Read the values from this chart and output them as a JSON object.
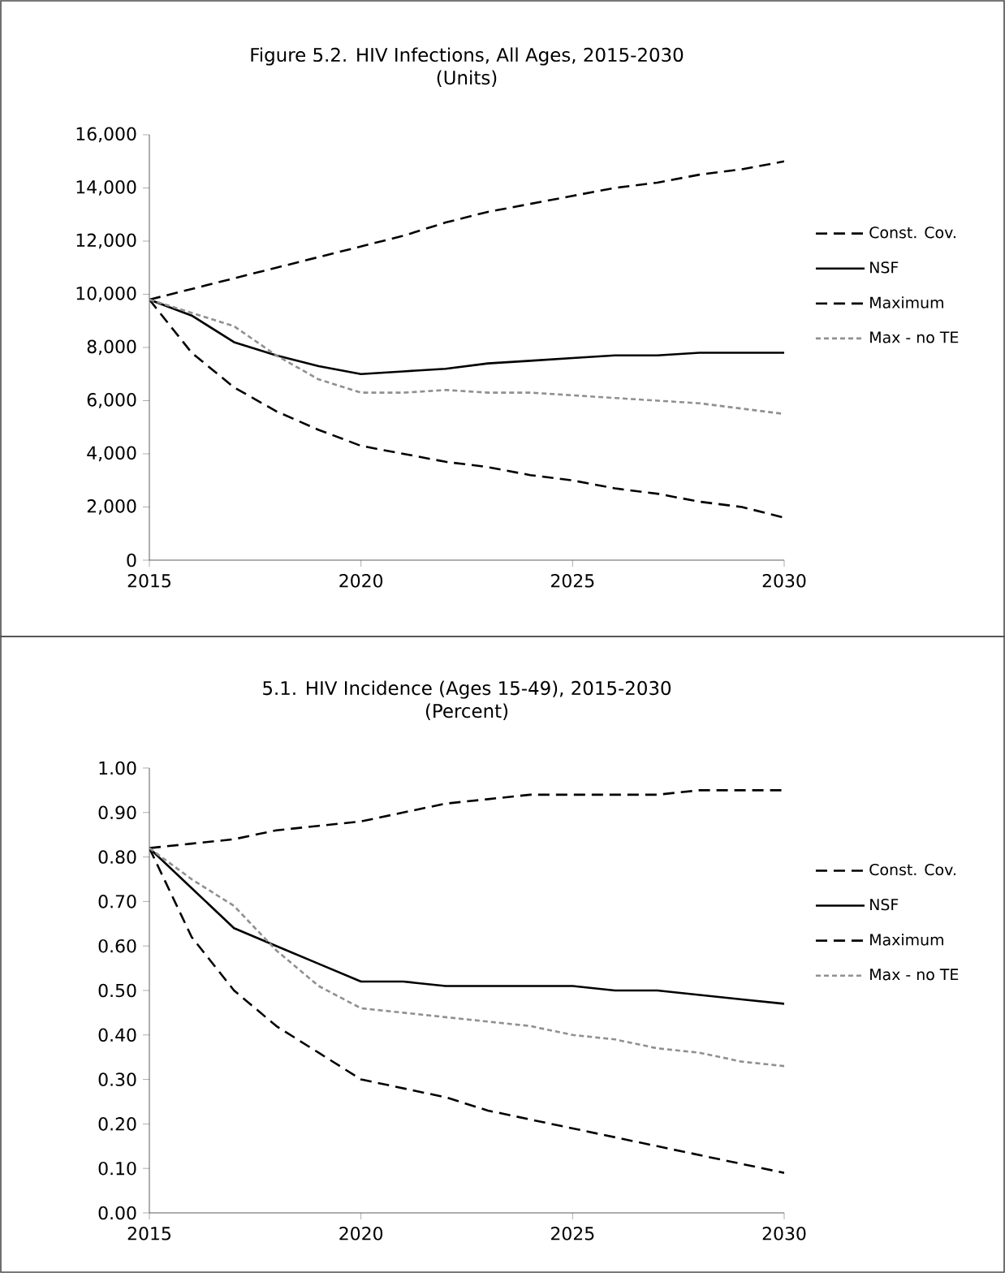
{
  "chart_data": [
    {
      "type": "line",
      "title": "Figure 5.2. HIV Infections, All Ages, 2015-2030",
      "subtitle": "(Units)",
      "x": [
        2015,
        2016,
        2017,
        2018,
        2019,
        2020,
        2021,
        2022,
        2023,
        2024,
        2025,
        2026,
        2027,
        2028,
        2029,
        2030
      ],
      "series": [
        {
          "name": "Const. Cov.",
          "color": "#000000",
          "line_style": "dashed",
          "values": [
            9800,
            10200,
            10600,
            11000,
            11400,
            11800,
            12200,
            12700,
            13100,
            13400,
            13700,
            14000,
            14200,
            14500,
            14700,
            15000
          ]
        },
        {
          "name": "NSF",
          "color": "#000000",
          "line_style": "solid",
          "values": [
            9800,
            9200,
            8200,
            7700,
            7300,
            7000,
            7100,
            7200,
            7400,
            7500,
            7600,
            7700,
            7700,
            7800,
            7800,
            7800
          ]
        },
        {
          "name": "Maximum",
          "color": "#000000",
          "line_style": "dashed",
          "values": [
            9800,
            7800,
            6500,
            5600,
            4900,
            4300,
            4000,
            3700,
            3500,
            3200,
            3000,
            2700,
            2500,
            2200,
            2000,
            1600
          ]
        },
        {
          "name": "Max - no TE",
          "color": "#909090",
          "line_style": "dotted",
          "values": [
            9800,
            9300,
            8800,
            7700,
            6800,
            6300,
            6300,
            6400,
            6300,
            6300,
            6200,
            6100,
            6000,
            5900,
            5700,
            5500
          ]
        }
      ],
      "xlim": [
        2015,
        2030
      ],
      "xticks": [
        2015,
        2020,
        2025,
        2030
      ],
      "ylim": [
        0,
        16000
      ],
      "yticks": [
        {
          "value": 0,
          "label": "0"
        },
        {
          "value": 2000,
          "label": "2,000"
        },
        {
          "value": 4000,
          "label": "4,000"
        },
        {
          "value": 6000,
          "label": "6,000"
        },
        {
          "value": 8000,
          "label": "8,000"
        },
        {
          "value": 10000,
          "label": "10,000"
        },
        {
          "value": 12000,
          "label": "12,000"
        },
        {
          "value": 14000,
          "label": "14,000"
        },
        {
          "value": 16000,
          "label": "16,000"
        }
      ],
      "grid": false,
      "legend": "right"
    },
    {
      "type": "line",
      "title": "5.1. HIV Incidence (Ages 15-49), 2015-2030",
      "subtitle": "(Percent)",
      "x": [
        2015,
        2016,
        2017,
        2018,
        2019,
        2020,
        2021,
        2022,
        2023,
        2024,
        2025,
        2026,
        2027,
        2028,
        2029,
        2030
      ],
      "series": [
        {
          "name": "Const. Cov.",
          "color": "#000000",
          "line_style": "dashed",
          "values": [
            0.82,
            0.83,
            0.84,
            0.86,
            0.87,
            0.88,
            0.9,
            0.92,
            0.93,
            0.94,
            0.94,
            0.94,
            0.94,
            0.95,
            0.95,
            0.95
          ]
        },
        {
          "name": "NSF",
          "color": "#000000",
          "line_style": "solid",
          "values": [
            0.82,
            0.73,
            0.64,
            0.6,
            0.56,
            0.52,
            0.52,
            0.51,
            0.51,
            0.51,
            0.51,
            0.5,
            0.5,
            0.49,
            0.48,
            0.47
          ]
        },
        {
          "name": "Maximum",
          "color": "#000000",
          "line_style": "dashed",
          "values": [
            0.82,
            0.62,
            0.5,
            0.42,
            0.36,
            0.3,
            0.28,
            0.26,
            0.23,
            0.21,
            0.19,
            0.17,
            0.15,
            0.13,
            0.11,
            0.09
          ]
        },
        {
          "name": "Max - no TE",
          "color": "#909090",
          "line_style": "dotted",
          "values": [
            0.82,
            0.75,
            0.69,
            0.59,
            0.51,
            0.46,
            0.45,
            0.44,
            0.43,
            0.42,
            0.4,
            0.39,
            0.37,
            0.36,
            0.34,
            0.33
          ]
        }
      ],
      "xlim": [
        2015,
        2030
      ],
      "xticks": [
        2015,
        2020,
        2025,
        2030
      ],
      "ylim": [
        0,
        1
      ],
      "yticks": [
        {
          "value": 0,
          "label": "0.00"
        },
        {
          "value": 0.1,
          "label": "0.10"
        },
        {
          "value": 0.2,
          "label": "0.20"
        },
        {
          "value": 0.3,
          "label": "0.30"
        },
        {
          "value": 0.4,
          "label": "0.40"
        },
        {
          "value": 0.5,
          "label": "0.50"
        },
        {
          "value": 0.6,
          "label": "0.60"
        },
        {
          "value": 0.7,
          "label": "0.70"
        },
        {
          "value": 0.8,
          "label": "0.80"
        },
        {
          "value": 0.9,
          "label": "0.90"
        },
        {
          "value": 1,
          "label": "1.00"
        }
      ],
      "grid": false,
      "legend": "right"
    }
  ]
}
